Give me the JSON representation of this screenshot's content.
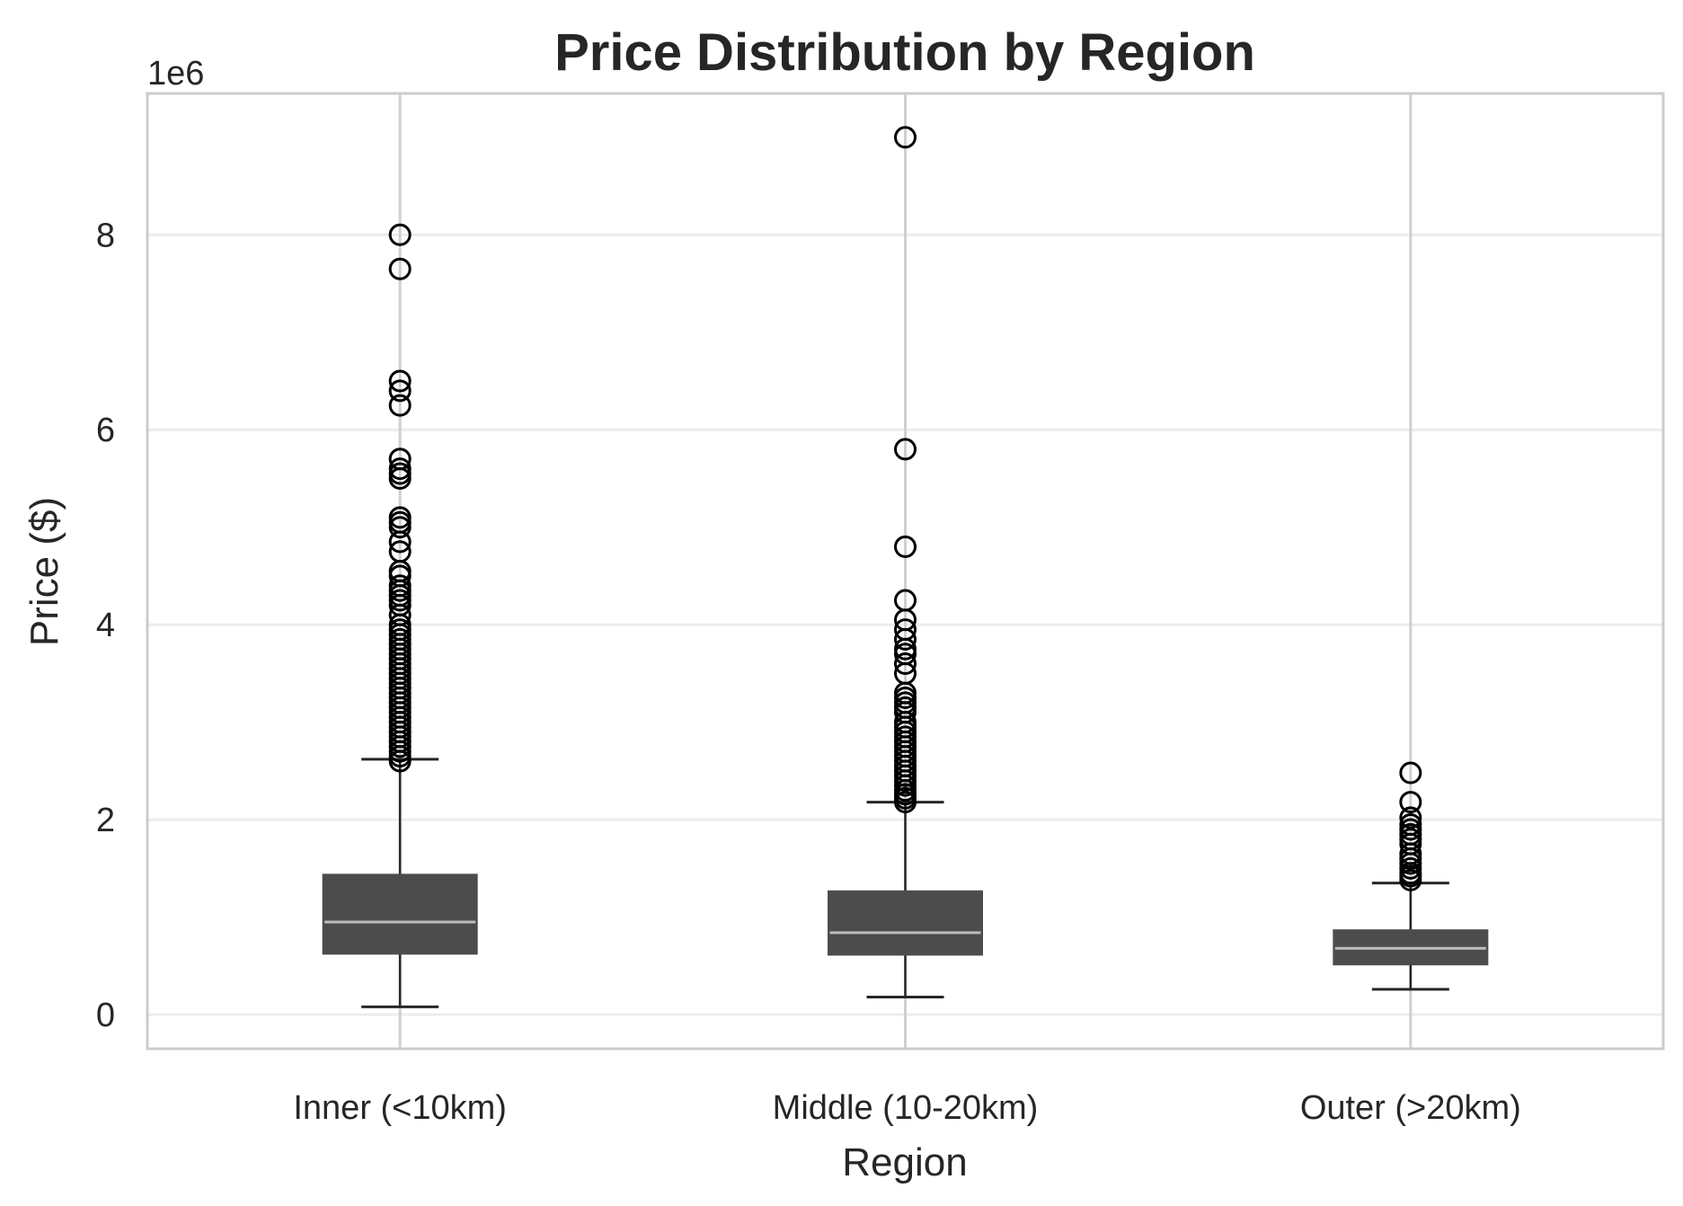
{
  "chart_data": {
    "type": "box",
    "title": "Price Distribution by Region",
    "xlabel": "Region",
    "ylabel": "Price ($)",
    "y_offset_label": "1e6",
    "y_scale_factor": 1000000,
    "ylim": [
      -350000,
      9450000
    ],
    "y_ticks": [
      0,
      2000000,
      4000000,
      6000000,
      8000000
    ],
    "y_tick_labels": [
      "0",
      "2",
      "4",
      "6",
      "8"
    ],
    "grid": true,
    "categories": [
      "Inner (<10km)",
      "Middle (10-20km)",
      "Outer (>20km)"
    ],
    "boxes": [
      {
        "category": "Inner (<10km)",
        "whisker_low": 80000,
        "q1": 620000,
        "median": 950000,
        "q3": 1440000,
        "whisker_high": 2620000,
        "outliers": [
          2600000,
          2650000,
          2700000,
          2750000,
          2800000,
          2850000,
          2900000,
          2950000,
          3000000,
          3050000,
          3100000,
          3150000,
          3200000,
          3250000,
          3300000,
          3350000,
          3400000,
          3450000,
          3500000,
          3550000,
          3600000,
          3650000,
          3700000,
          3750000,
          3800000,
          3850000,
          3900000,
          3950000,
          4000000,
          4100000,
          4200000,
          4250000,
          4300000,
          4350000,
          4400000,
          4500000,
          4550000,
          4750000,
          4850000,
          5000000,
          5050000,
          5100000,
          5500000,
          5550000,
          5600000,
          5700000,
          6250000,
          6400000,
          6500000,
          7650000,
          8000000
        ]
      },
      {
        "category": "Middle (10-20km)",
        "whisker_low": 180000,
        "q1": 610000,
        "median": 840000,
        "q3": 1270000,
        "whisker_high": 2180000,
        "outliers": [
          2180000,
          2220000,
          2260000,
          2300000,
          2350000,
          2400000,
          2450000,
          2500000,
          2550000,
          2600000,
          2650000,
          2700000,
          2750000,
          2800000,
          2850000,
          2900000,
          2950000,
          3000000,
          3100000,
          3150000,
          3200000,
          3250000,
          3300000,
          3500000,
          3600000,
          3700000,
          3750000,
          3850000,
          3950000,
          4050000,
          4250000,
          4800000,
          5800000,
          9000000
        ]
      },
      {
        "category": "Outer (>20km)",
        "whisker_low": 260000,
        "q1": 510000,
        "median": 680000,
        "q3": 870000,
        "whisker_high": 1350000,
        "outliers": [
          1380000,
          1420000,
          1450000,
          1500000,
          1550000,
          1600000,
          1650000,
          1750000,
          1800000,
          1850000,
          1900000,
          1950000,
          2020000,
          2180000,
          2480000
        ]
      }
    ],
    "colors": {
      "box_fill": "#4c4c4c",
      "median_line": "#bdbdbd",
      "whisker": "#262626",
      "outlier_edge": "#000000",
      "grid": "#ececec",
      "frame": "#cccccc",
      "text": "#262626"
    }
  }
}
